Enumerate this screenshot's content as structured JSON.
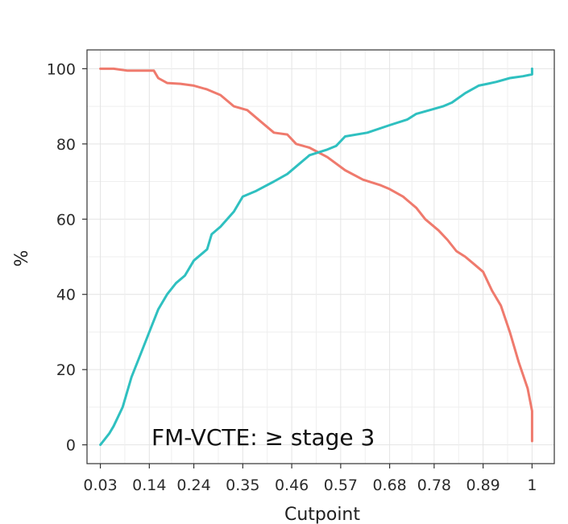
{
  "chart_data": {
    "type": "line",
    "title": "",
    "xlabel": "Cutpoint",
    "ylabel": "%",
    "xlim": [
      0.0,
      1.05
    ],
    "ylim": [
      -5,
      105
    ],
    "grid": true,
    "annotation": "FM-VCTE: ≥ stage 3",
    "x_ticks": [
      {
        "value": 0.03,
        "label": "0.03"
      },
      {
        "value": 0.14,
        "label": "0.14"
      },
      {
        "value": 0.24,
        "label": "0.24"
      },
      {
        "value": 0.35,
        "label": "0.35"
      },
      {
        "value": 0.46,
        "label": "0.46"
      },
      {
        "value": 0.57,
        "label": "0.57"
      },
      {
        "value": 0.68,
        "label": "0.68"
      },
      {
        "value": 0.78,
        "label": "0.78"
      },
      {
        "value": 0.89,
        "label": "0.89"
      },
      {
        "value": 1.0,
        "label": "1"
      }
    ],
    "y_ticks": [
      {
        "value": 0,
        "label": "0"
      },
      {
        "value": 20,
        "label": "20"
      },
      {
        "value": 40,
        "label": "40"
      },
      {
        "value": 60,
        "label": "60"
      },
      {
        "value": 80,
        "label": "80"
      },
      {
        "value": 100,
        "label": "100"
      }
    ],
    "series": [
      {
        "name": "red-curve",
        "color": "#ef7a6d",
        "points": [
          [
            0.03,
            100
          ],
          [
            0.06,
            100
          ],
          [
            0.09,
            99.5
          ],
          [
            0.12,
            99.5
          ],
          [
            0.15,
            99.5
          ],
          [
            0.16,
            97.5
          ],
          [
            0.18,
            96.2
          ],
          [
            0.21,
            96
          ],
          [
            0.24,
            95.5
          ],
          [
            0.27,
            94.5
          ],
          [
            0.3,
            93
          ],
          [
            0.33,
            90
          ],
          [
            0.36,
            89
          ],
          [
            0.39,
            86
          ],
          [
            0.42,
            83
          ],
          [
            0.45,
            82.5
          ],
          [
            0.47,
            80
          ],
          [
            0.5,
            79
          ],
          [
            0.54,
            76.5
          ],
          [
            0.58,
            73
          ],
          [
            0.62,
            70.5
          ],
          [
            0.66,
            69
          ],
          [
            0.68,
            68
          ],
          [
            0.71,
            66
          ],
          [
            0.74,
            63
          ],
          [
            0.76,
            60
          ],
          [
            0.79,
            57
          ],
          [
            0.81,
            54.5
          ],
          [
            0.83,
            51.5
          ],
          [
            0.85,
            50
          ],
          [
            0.87,
            48
          ],
          [
            0.89,
            46
          ],
          [
            0.91,
            41
          ],
          [
            0.93,
            37
          ],
          [
            0.95,
            30
          ],
          [
            0.97,
            22
          ],
          [
            0.99,
            15
          ],
          [
            1.0,
            9
          ],
          [
            1.0,
            1
          ]
        ]
      },
      {
        "name": "teal-curve",
        "color": "#2fc0c0",
        "points": [
          [
            0.03,
            0
          ],
          [
            0.05,
            3
          ],
          [
            0.06,
            5
          ],
          [
            0.08,
            10
          ],
          [
            0.1,
            18
          ],
          [
            0.12,
            24
          ],
          [
            0.14,
            30
          ],
          [
            0.16,
            36
          ],
          [
            0.18,
            40
          ],
          [
            0.2,
            43
          ],
          [
            0.22,
            45
          ],
          [
            0.24,
            49
          ],
          [
            0.27,
            52
          ],
          [
            0.28,
            56
          ],
          [
            0.3,
            58
          ],
          [
            0.33,
            62
          ],
          [
            0.35,
            66
          ],
          [
            0.38,
            67.5
          ],
          [
            0.42,
            70
          ],
          [
            0.45,
            72
          ],
          [
            0.48,
            75
          ],
          [
            0.5,
            77
          ],
          [
            0.54,
            78.5
          ],
          [
            0.56,
            79.5
          ],
          [
            0.58,
            82
          ],
          [
            0.63,
            83
          ],
          [
            0.68,
            85
          ],
          [
            0.72,
            86.5
          ],
          [
            0.74,
            88
          ],
          [
            0.77,
            89
          ],
          [
            0.8,
            90
          ],
          [
            0.82,
            91
          ],
          [
            0.85,
            93.5
          ],
          [
            0.88,
            95.5
          ],
          [
            0.9,
            96
          ],
          [
            0.92,
            96.5
          ],
          [
            0.95,
            97.5
          ],
          [
            0.98,
            98
          ],
          [
            1.0,
            98.5
          ],
          [
            1.0,
            100
          ]
        ]
      }
    ]
  }
}
